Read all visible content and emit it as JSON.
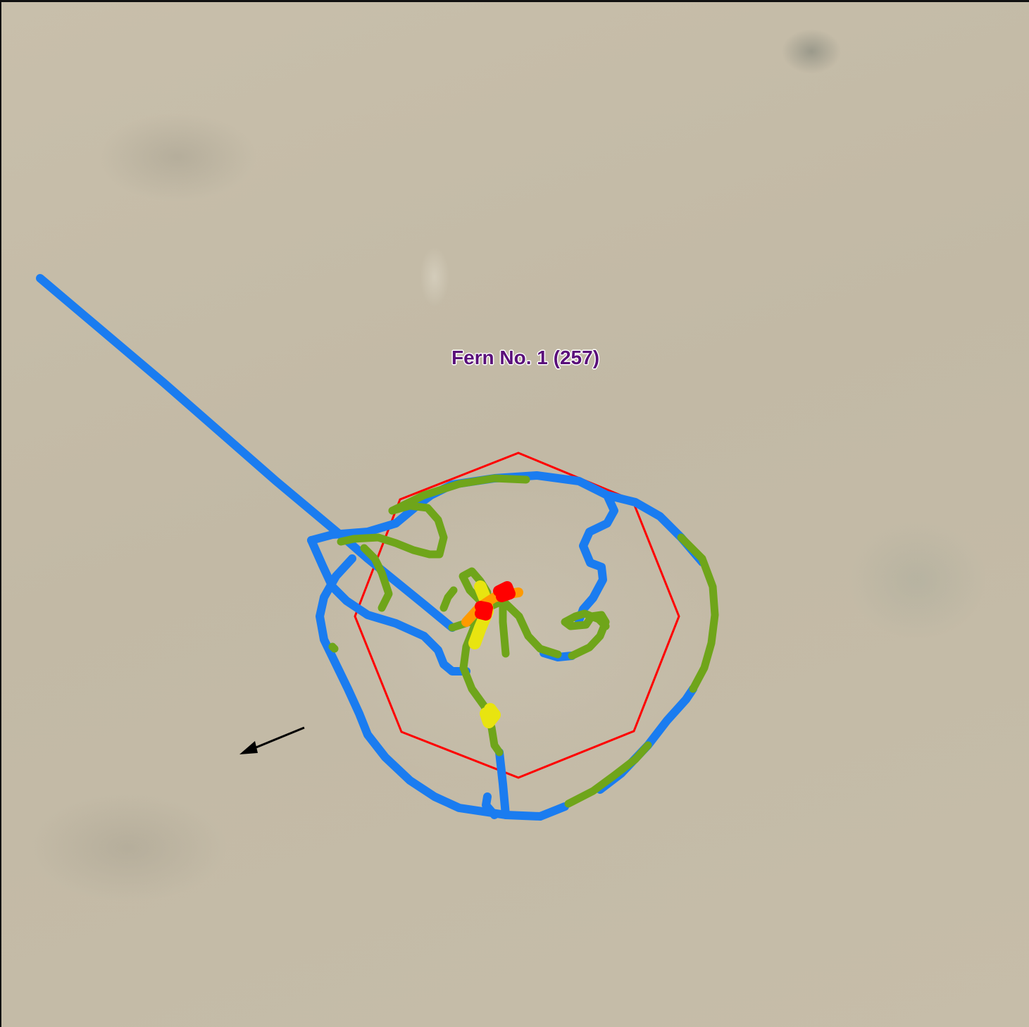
{
  "map": {
    "label": "Fern No. 1 (257)",
    "label_color": "#5a0f7a",
    "zone_color": "#ff0000",
    "wind_arrow_icon": "wind-direction-arrow-icon",
    "speed_colors": {
      "fast": "#1a7cf0",
      "medium": "#6fa51a",
      "slow": "#e8e410",
      "slower": "#ff9a00",
      "slowest": "#ff0000"
    }
  }
}
